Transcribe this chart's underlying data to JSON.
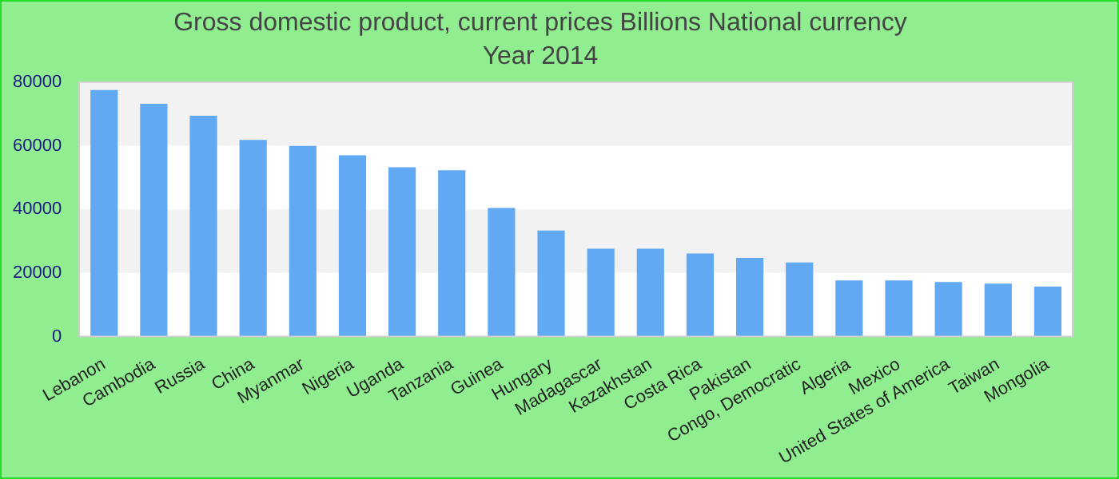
{
  "chart_data": {
    "type": "bar",
    "title": "Gross domestic product, current prices Billions National currency",
    "subtitle": "Year 2014",
    "categories": [
      "Lebanon",
      "Cambodia",
      "Russia",
      "China",
      "Myanmar",
      "Nigeria",
      "Uganda",
      "Tanzania",
      "Guinea",
      "Hungary",
      "Madagascar",
      "Kazakhstan",
      "Costa Rica",
      "Pakistan",
      "Congo, Democratic",
      "Algeria",
      "Mexico",
      "United States of America",
      "Taiwan",
      "Mongolia"
    ],
    "values": [
      77500,
      73200,
      69400,
      61800,
      59900,
      57000,
      53200,
      52300,
      40400,
      33300,
      27600,
      27600,
      26100,
      24700,
      23300,
      17600,
      17600,
      17100,
      16600,
      15700
    ],
    "color": "#62a9f3",
    "ylim": [
      0,
      80000
    ],
    "yticks": [
      0,
      20000,
      40000,
      60000,
      80000
    ],
    "bands": [
      {
        "axis": "y",
        "from": 20000,
        "to": 40000,
        "color": "#f2f2f2"
      },
      {
        "axis": "y",
        "from": 60000,
        "to": 80000,
        "color": "#f2f2f2"
      }
    ]
  }
}
